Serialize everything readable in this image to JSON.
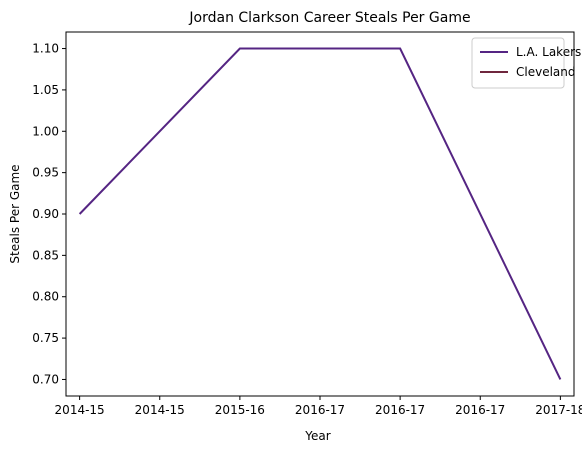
{
  "chart_data": {
    "type": "line",
    "title": "Jordan Clarkson Career Steals Per Game",
    "xlabel": "Year",
    "ylabel": "Steals Per Game",
    "x_tick_labels": [
      "2014-15",
      "2014-15",
      "2015-16",
      "2016-17",
      "2016-17",
      "2016-17",
      "2017-18"
    ],
    "x_range": [
      -0.17,
      6.17
    ],
    "ylim": [
      0.68,
      1.12
    ],
    "y_ticks": [
      "0.70",
      "0.75",
      "0.80",
      "0.85",
      "0.90",
      "0.95",
      "1.00",
      "1.05",
      "1.10"
    ],
    "grid": false,
    "legend_position": "top-right",
    "series": [
      {
        "name": "L.A. Lakers",
        "color": "#552583",
        "points": [
          {
            "x": 0,
            "y": 0.9
          },
          {
            "x": 2,
            "y": 1.1
          },
          {
            "x": 4,
            "y": 1.1
          },
          {
            "x": 6,
            "y": 0.7
          }
        ]
      },
      {
        "name": "Cleveland",
        "color": "#6F263D",
        "points": [
          {
            "x": 6,
            "y": 0.7
          }
        ]
      }
    ]
  }
}
